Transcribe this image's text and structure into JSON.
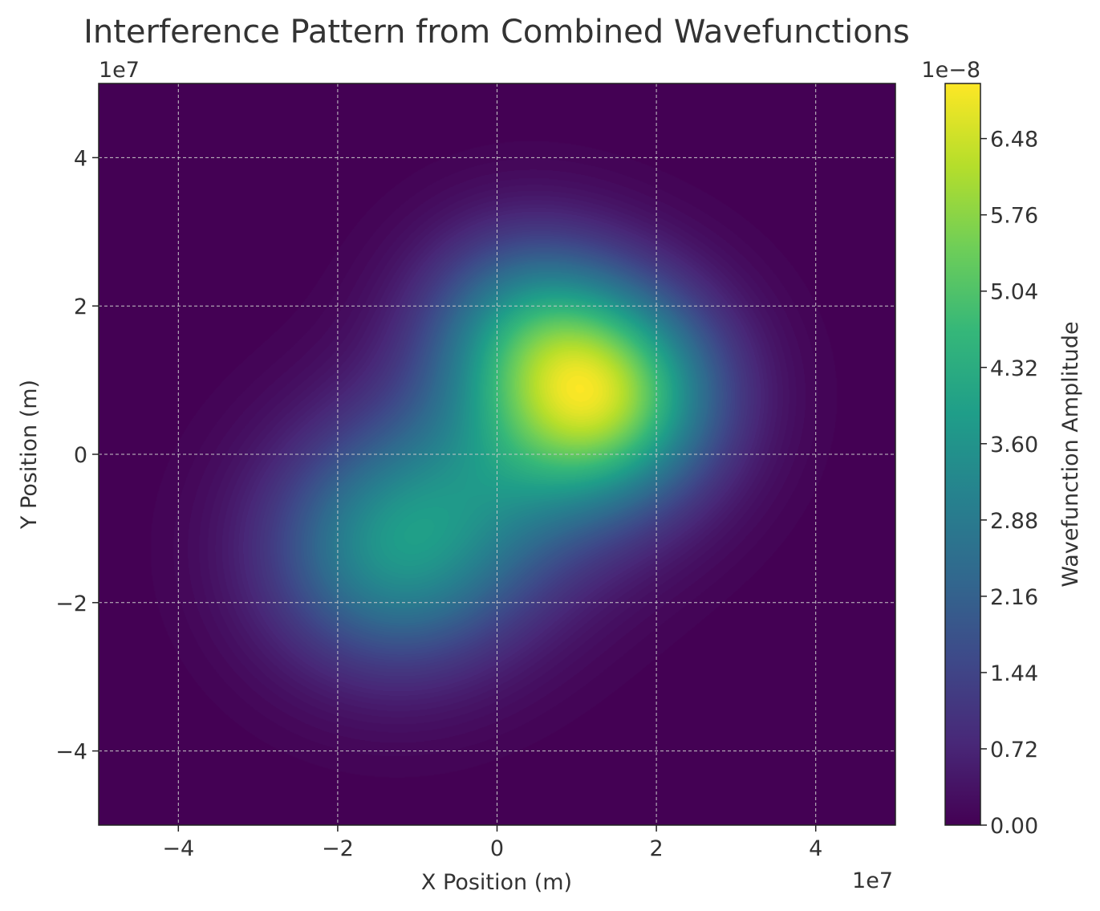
{
  "chart_data": {
    "type": "heatmap",
    "title": "Interference Pattern from Combined Wavefunctions",
    "xlabel": "X Position (m)",
    "ylabel": "Y Position (m)",
    "x_offset_label": "1e7",
    "y_offset_label": "1e7",
    "xlim": [
      -5,
      5
    ],
    "ylim": [
      -5,
      5
    ],
    "x_scale_exponent": 7,
    "y_scale_exponent": 7,
    "x_ticks": [
      -4,
      -2,
      0,
      2,
      4
    ],
    "y_ticks": [
      -4,
      -2,
      0,
      2,
      4
    ],
    "x_tick_labels": [
      "−4",
      "−2",
      "0",
      "2",
      "4"
    ],
    "y_tick_labels": [
      "−4",
      "−2",
      "0",
      "2",
      "4"
    ],
    "grid": true,
    "colormap": "viridis",
    "colorbar": {
      "label": "Wavefunction Amplitude",
      "offset_label": "1e−8",
      "min": 0,
      "max": 7.0,
      "ticks": [
        0.0,
        0.72,
        1.44,
        2.16,
        2.88,
        3.6,
        4.32,
        5.04,
        5.76,
        6.48
      ],
      "tick_labels": [
        "0.00",
        "0.72",
        "1.44",
        "2.16",
        "2.88",
        "3.60",
        "4.32",
        "5.04",
        "5.76",
        "6.48"
      ]
    },
    "field_components": [
      {
        "x": 1.3,
        "y": 0.8,
        "amplitude": 5.6,
        "sigma": 1.0
      },
      {
        "x": 0.3,
        "y": 1.8,
        "amplitude": 2.2,
        "sigma": 0.9
      },
      {
        "x": -1.3,
        "y": -1.3,
        "amplitude": 3.2,
        "sigma": 1.1
      },
      {
        "x": 0.0,
        "y": -0.3,
        "amplitude": 1.5,
        "sigma": 1.2
      }
    ],
    "colors": {
      "viridis": [
        "#440154",
        "#482878",
        "#3e4989",
        "#31688e",
        "#26828e",
        "#1f9e89",
        "#35b779",
        "#6ece58",
        "#b5de2b",
        "#fde725"
      ],
      "grid": "#c8c8c8",
      "text": "#333333"
    }
  }
}
